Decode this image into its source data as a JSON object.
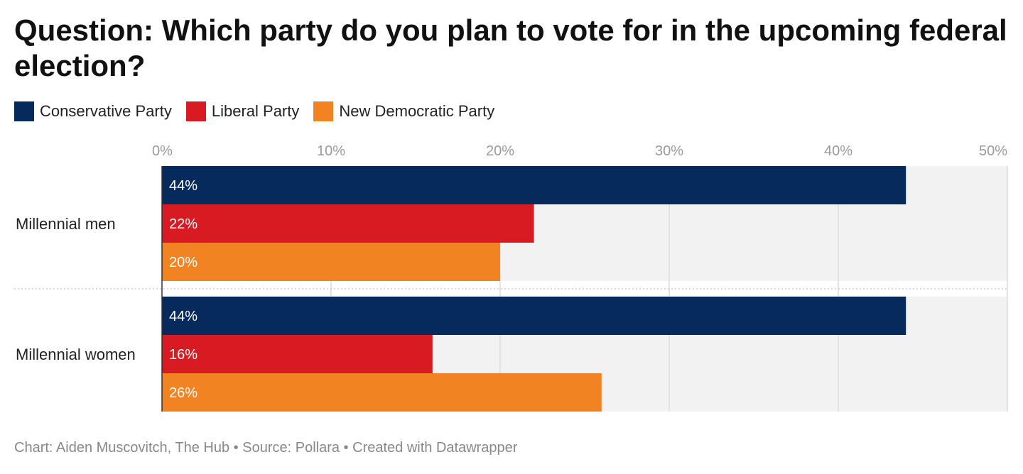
{
  "title": "Question: Which party do you plan to vote for in the upcoming federal election?",
  "legend": [
    {
      "name": "Conservative Party",
      "color": "#062a5b"
    },
    {
      "name": "Liberal Party",
      "color": "#d81b22"
    },
    {
      "name": "New Democratic Party",
      "color": "#f28322"
    }
  ],
  "footer": {
    "chart": "Chart: Aiden Muscovitch, The Hub",
    "separator": " • ",
    "source": "Source: Pollara",
    "created": "Created with Datawrapper"
  },
  "chart_data": {
    "type": "bar",
    "orientation": "horizontal",
    "categories": [
      "Millennial men",
      "Millennial women"
    ],
    "series": [
      {
        "name": "Conservative Party",
        "values": [
          44,
          44
        ],
        "labels": [
          "44%",
          "44%"
        ],
        "color": "#062a5b"
      },
      {
        "name": "Liberal Party",
        "values": [
          22,
          16
        ],
        "labels": [
          "22%",
          "16%"
        ],
        "color": "#d81b22"
      },
      {
        "name": "New Democratic Party",
        "values": [
          20,
          26
        ],
        "labels": [
          "20%",
          "26%"
        ],
        "color": "#f28322"
      }
    ],
    "xlim": [
      0,
      50
    ],
    "ticks": [
      0,
      10,
      20,
      30,
      40,
      50
    ],
    "tick_labels": [
      "0%",
      "10%",
      "20%",
      "30%",
      "40%",
      "50%"
    ],
    "grid": true,
    "legend_position": "top-left"
  }
}
